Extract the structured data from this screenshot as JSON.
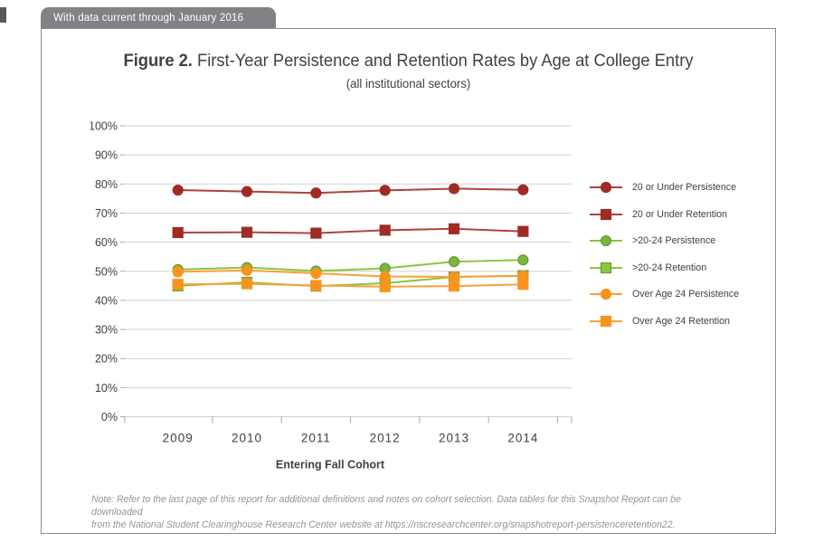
{
  "banner": {
    "text": "With data current through January 2016"
  },
  "figure": {
    "title_prefix": "Figure 2.",
    "title_rest": " First-Year Persistence and Retention Rates by Age at College Entry",
    "subtitle": "(all institutional sectors)"
  },
  "chart_data": {
    "type": "line",
    "title": "First-Year Persistence and Retention Rates by Age at College Entry (all institutional sectors)",
    "categories": [
      "2009",
      "2010",
      "2011",
      "2012",
      "2013",
      "2014"
    ],
    "xlabel": "Entering Fall Cohort",
    "ylabel": "",
    "ylim": [
      0,
      100
    ],
    "ytick_step": 10,
    "yticks": [
      "0%",
      "10%",
      "20%",
      "30%",
      "40%",
      "50%",
      "60%",
      "70%",
      "80%",
      "90%",
      "100%"
    ],
    "grid": "horizontal",
    "legend_position": "right",
    "series": [
      {
        "name": "20 or Under Persistence",
        "marker": "circle",
        "line_color": "#B0423C",
        "fill_color": "#A02B25",
        "border_color": "#A02B25",
        "values": [
          77.9,
          77.4,
          76.9,
          77.8,
          78.4,
          78.0
        ]
      },
      {
        "name": "20 or Under Retention",
        "marker": "square",
        "line_color": "#B0423C",
        "fill_color": "#A02B25",
        "border_color": "#A02B25",
        "values": [
          63.3,
          63.4,
          63.1,
          64.1,
          64.6,
          63.7
        ]
      },
      {
        "name": ">20-24 Persistence",
        "marker": "circle",
        "line_color": "#8CC63F",
        "fill_color": "#7CB342",
        "border_color": "#63A031",
        "values": [
          50.6,
          51.3,
          50.1,
          51.0,
          53.3,
          53.9
        ]
      },
      {
        "name": ">20-24 Retention",
        "marker": "square",
        "line_color": "#8CC63F",
        "fill_color": "#8CC63F",
        "border_color": "#63A031",
        "values": [
          45.0,
          46.2,
          44.9,
          45.9,
          48.0,
          48.5
        ]
      },
      {
        "name": "Over Age 24 Persistence",
        "marker": "circle",
        "line_color": "#F8A03C",
        "fill_color": "#F7941E",
        "border_color": "#F7941E",
        "values": [
          49.8,
          50.3,
          49.3,
          48.2,
          48.1,
          48.4
        ]
      },
      {
        "name": "Over Age 24 Retention",
        "marker": "square",
        "line_color": "#F8A03C",
        "fill_color": "#F7941E",
        "border_color": "#F7941E",
        "values": [
          45.5,
          45.7,
          45.1,
          44.7,
          44.9,
          45.5
        ]
      }
    ]
  },
  "note": {
    "line1": "Note: Refer to the last page of this report for additional definitions and notes on cohort selection. Data tables for this Snapshot Report can be downloaded",
    "line2": "from the National Student Clearinghouse Research Center website at https://nscresearchcenter.org/snapshotreport-persistenceretention22."
  },
  "colors": {
    "banner_bg": "#808285",
    "card_border": "#8A8C8E",
    "grid_line": "#CFD1D2",
    "axis_line": "#A7A9AC",
    "text": "#414042",
    "note_text": "#939598"
  }
}
